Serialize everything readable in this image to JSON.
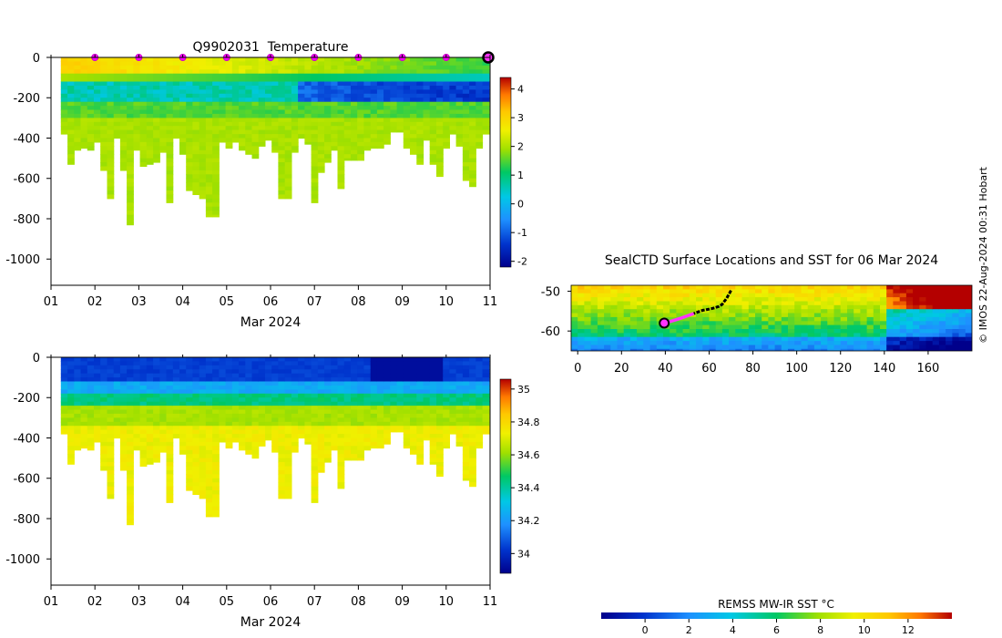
{
  "figure": {
    "credit": "© IMOS 22-Aug-2024 00:31 Hobart"
  },
  "chart_data": [
    {
      "type": "heatmap",
      "title": "Q9902031  Temperature",
      "xlabel": "Mar 2024",
      "ylabel": "",
      "x_ticks": [
        "01",
        "02",
        "03",
        "04",
        "05",
        "06",
        "07",
        "08",
        "09",
        "10",
        "11"
      ],
      "xlim": [
        1,
        11
      ],
      "ylim": [
        -1130,
        0
      ],
      "y_ticks": [
        0,
        -200,
        -400,
        -600,
        -800,
        -1000
      ],
      "grid": false,
      "colorbar": {
        "min": -2.2,
        "max": 4.4,
        "ticks": [
          -2,
          -1,
          0,
          1,
          2,
          3,
          4
        ]
      },
      "surface_markers_day": [
        2,
        3,
        4,
        5,
        6,
        7,
        8,
        9,
        10
      ],
      "latest_marker_day": 11,
      "profile_days": [
        1.3,
        1.45,
        1.6,
        1.75,
        1.9,
        2.05,
        2.2,
        2.35,
        2.5,
        2.65,
        2.8,
        2.95,
        3.1,
        3.25,
        3.4,
        3.55,
        3.7,
        3.85,
        4.0,
        4.15,
        4.3,
        4.45,
        4.6,
        4.75,
        4.9,
        5.05,
        5.2,
        5.35,
        5.5,
        5.65,
        5.8,
        5.95,
        6.1,
        6.25,
        6.4,
        6.55,
        6.7,
        6.85,
        7.0,
        7.15,
        7.3,
        7.45,
        7.6,
        7.75,
        7.9,
        8.05,
        8.2,
        8.35,
        8.5,
        8.65,
        8.8,
        8.95,
        9.1,
        9.25,
        9.4,
        9.55,
        9.7,
        9.85,
        10.0,
        10.15,
        10.3,
        10.45,
        10.6,
        10.75,
        10.9
      ],
      "profile_max_depths": [
        -380,
        -530,
        -460,
        -450,
        -460,
        -420,
        -560,
        -700,
        -400,
        -560,
        -830,
        -460,
        -540,
        -530,
        -520,
        -470,
        -720,
        -400,
        -480,
        -660,
        -680,
        -700,
        -790,
        -790,
        -420,
        -450,
        -420,
        -460,
        -480,
        -500,
        -440,
        -410,
        -470,
        -700,
        -700,
        -470,
        -400,
        -430,
        -720,
        -570,
        -520,
        -460,
        -650,
        -510,
        -510,
        -510,
        -460,
        -450,
        -450,
        -430,
        -370,
        -370,
        -450,
        -480,
        -530,
        -410,
        -530,
        -590,
        -450,
        -380,
        -440,
        -610,
        -640,
        -450,
        -380
      ]
    },
    {
      "type": "heatmap",
      "title": "",
      "xlabel": "Mar 2024",
      "ylabel": "",
      "x_ticks": [
        "01",
        "02",
        "03",
        "04",
        "05",
        "06",
        "07",
        "08",
        "09",
        "10",
        "11"
      ],
      "xlim": [
        1,
        11
      ],
      "ylim": [
        -1130,
        0
      ],
      "y_ticks": [
        0,
        -200,
        -400,
        -600,
        -800,
        -1000
      ],
      "grid": false,
      "colorbar": {
        "min": 33.88,
        "max": 35.06,
        "ticks": [
          34,
          34.2,
          34.4,
          34.6,
          34.8,
          35
        ]
      }
    },
    {
      "type": "heatmap",
      "title": "SealCTD Surface Locations and SST for 06 Mar 2024",
      "xlabel": "",
      "ylabel": "",
      "xlim": [
        -3,
        180
      ],
      "ylim": [
        -65,
        -48.5
      ],
      "x_ticks": [
        0,
        20,
        40,
        60,
        80,
        100,
        120,
        140,
        160
      ],
      "y_ticks": [
        -50,
        -60
      ],
      "track_lon": [
        70,
        69.5,
        68.8,
        68,
        67,
        66,
        64.5,
        63,
        61,
        59,
        57,
        55,
        53
      ],
      "track_lat": [
        -49.8,
        -50.3,
        -51,
        -51.8,
        -52.5,
        -53.3,
        -53.8,
        -54.1,
        -54.4,
        -54.6,
        -54.8,
        -55.2,
        -55.6
      ],
      "recent_track_lon": [
        53,
        50,
        47,
        44,
        41,
        39.5
      ],
      "recent_track_lat": [
        -55.6,
        -56.2,
        -56.8,
        -57.3,
        -57.8,
        -58
      ],
      "current_position": {
        "lon": 39.5,
        "lat": -58
      },
      "colorbar": {
        "label": "REMSS MW-IR SST °C",
        "min": -2,
        "max": 14,
        "ticks": [
          0,
          2,
          4,
          6,
          8,
          10,
          12
        ]
      }
    }
  ]
}
